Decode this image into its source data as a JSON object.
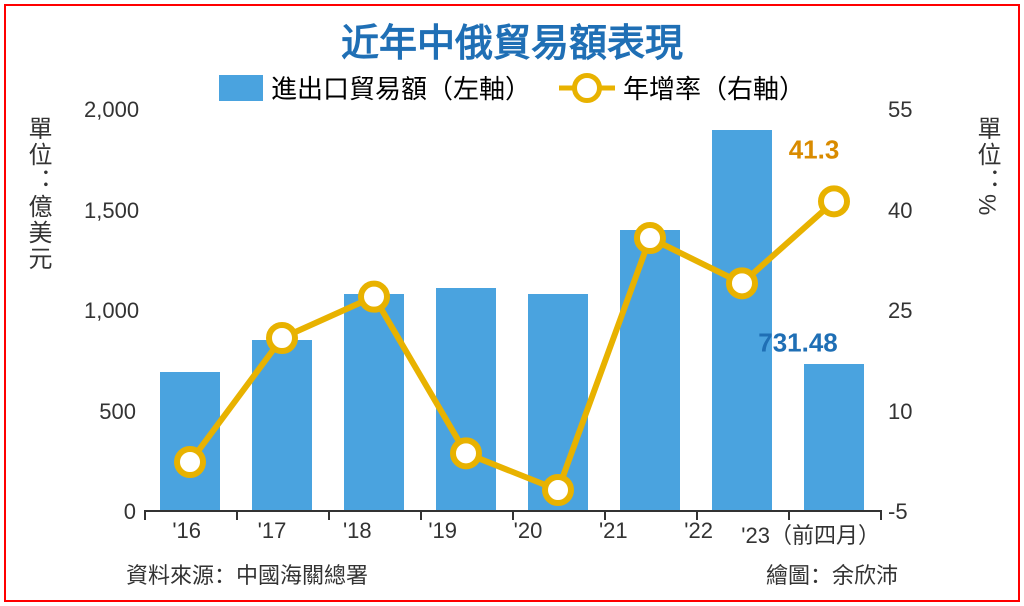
{
  "title": {
    "text": "近年中俄貿易額表現",
    "fontsize": 38,
    "color": "#1f6fb5"
  },
  "legend": {
    "bar": {
      "label": "進出口貿易額（左軸）",
      "color": "#4aa3df",
      "fontsize": 26,
      "text_color": "#333333"
    },
    "line": {
      "label": "年增率（右軸）",
      "color": "#e8b200",
      "fontsize": 26,
      "text_color": "#333333"
    }
  },
  "chart": {
    "type": "bar+line",
    "categories": [
      "'16",
      "'17",
      "'18",
      "'19",
      "'20",
      "'21",
      "'22",
      "'23（前四月）"
    ],
    "bar": {
      "values": [
        690,
        850,
        1080,
        1110,
        1080,
        1400,
        1900,
        731.48
      ],
      "color": "#4aa3df",
      "y_min": 0,
      "y_max": 2000,
      "y_ticks": [
        0,
        500,
        1000,
        1500,
        2000
      ],
      "y_tick_labels": [
        "0",
        "500",
        "1,000",
        "1,500",
        "2,000"
      ],
      "axis_label": "單位：億美元"
    },
    "line": {
      "values": [
        2.2,
        20.8,
        27.0,
        3.5,
        -2.0,
        35.8,
        29.0,
        41.3
      ],
      "color": "#e8b200",
      "marker_fill": "#ffffff",
      "marker_border_width": 6,
      "marker_radius": 13,
      "line_width": 6,
      "y_min": -5,
      "y_max": 55,
      "y_ticks": [
        -5,
        10,
        25,
        40,
        55
      ],
      "y_tick_labels": [
        "-5",
        "10",
        "25",
        "40",
        "55"
      ],
      "axis_label": "單位：%"
    },
    "annotations": [
      {
        "text": "41.3",
        "color": "#d98b00",
        "x_index": 7,
        "y_right": 49,
        "dx": -20
      },
      {
        "text": "731.48",
        "color": "#1f6fb5",
        "x_index": 7,
        "y_right": 20,
        "dx": -36
      }
    ],
    "x_fontsize": 22,
    "y_fontsize": 22,
    "axis_label_fontsize": 24,
    "baseline_color": "#333333"
  },
  "footer": {
    "source": "資料來源：中國海關總署",
    "credit": "繪圖：余欣沛"
  }
}
